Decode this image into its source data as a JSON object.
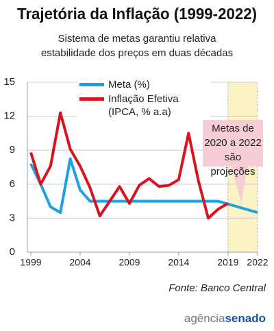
{
  "chart_data": {
    "type": "line",
    "title": "Trajetória da Inflação (1999-2022)",
    "subtitle": "Sistema de metas garantiu relativa\nestabilidade dos preços em duas décadas",
    "x": [
      1999,
      2000,
      2001,
      2002,
      2003,
      2004,
      2005,
      2006,
      2007,
      2008,
      2009,
      2010,
      2011,
      2012,
      2013,
      2014,
      2015,
      2016,
      2017,
      2018,
      2019,
      2020,
      2021,
      2022
    ],
    "series": [
      {
        "name": "Meta (%)",
        "color": "#1aa3dc",
        "values": [
          7.8,
          6,
          4,
          3.5,
          8.25,
          5.5,
          4.5,
          4.5,
          4.5,
          4.5,
          4.5,
          4.5,
          4.5,
          4.5,
          4.5,
          4.5,
          4.5,
          4.5,
          4.5,
          4.5,
          4.25,
          4,
          3.75,
          3.5
        ]
      },
      {
        "name": "Inflação Efetiva\n(IPCA, % a.a)",
        "color": "#d7141f",
        "values": [
          8.8,
          6.0,
          7.6,
          12.3,
          9.1,
          7.6,
          5.7,
          3.2,
          4.5,
          5.8,
          4.3,
          5.9,
          6.5,
          5.8,
          5.9,
          6.4,
          10.5,
          6.3,
          3.0,
          3.8,
          4.3,
          null,
          null,
          null
        ]
      }
    ],
    "xlim": [
      1999,
      2022
    ],
    "xticks": [
      1999,
      2004,
      2009,
      2014,
      2019,
      2022
    ],
    "ylim": [
      0,
      15
    ],
    "yticks": [
      0,
      3,
      6,
      9,
      12,
      15
    ],
    "grid": true,
    "highlight_xrange": [
      2019,
      2022
    ],
    "highlight_color": "#fbf3c4",
    "annotation": "Metas de\n2020 a 2022\nsão projeções",
    "source": "Fonte: Banco Central",
    "logo": {
      "part1": "agência",
      "part2": "senado"
    }
  }
}
